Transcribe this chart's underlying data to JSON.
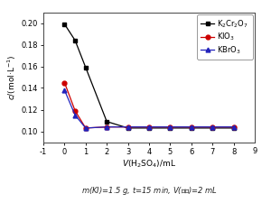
{
  "k2cr2o7_x": [
    0,
    0.5,
    1,
    2,
    3,
    4,
    5,
    6,
    7,
    8
  ],
  "k2cr2o7_y": [
    0.199,
    0.184,
    0.159,
    0.109,
    0.103,
    0.103,
    0.103,
    0.103,
    0.103,
    0.103
  ],
  "kio3_x": [
    0,
    0.5,
    1,
    2,
    3,
    4,
    5,
    6,
    7,
    8
  ],
  "kio3_y": [
    0.145,
    0.119,
    0.103,
    0.104,
    0.104,
    0.104,
    0.104,
    0.104,
    0.104,
    0.104
  ],
  "kbro3_x": [
    0,
    0.5,
    1,
    2,
    3,
    4,
    5,
    6,
    7,
    8
  ],
  "kbro3_y": [
    0.138,
    0.115,
    0.103,
    0.104,
    0.104,
    0.104,
    0.104,
    0.104,
    0.104,
    0.104
  ],
  "k2cr2o7_color": "#000000",
  "kio3_color": "#cc0000",
  "kbro3_color": "#2222bb",
  "k2cr2o7_label": "K$_2$Cr$_2$O$_7$",
  "kio3_label": "KIO$_3$",
  "kbro3_label": "KBrO$_3$",
  "xlabel": "$V$(H$_2$SO$_4$)/mL",
  "ylabel": "$c$/(mol·L$^{-1}$)",
  "footnote": "$m$(KI)=1.5 g, $t$=15 min, $V$(淠粉)=2 mL",
  "xlim": [
    -1,
    9
  ],
  "ylim": [
    0.09,
    0.21
  ],
  "yticks": [
    0.1,
    0.12,
    0.14,
    0.16,
    0.18,
    0.2
  ],
  "xticks": [
    -1,
    0,
    1,
    2,
    3,
    4,
    5,
    6,
    7,
    8
  ],
  "xtick_labels": [
    "-1",
    "0",
    "1",
    "2",
    "3",
    "4",
    "5",
    "6",
    "7",
    "8"
  ],
  "background_color": "#ffffff"
}
